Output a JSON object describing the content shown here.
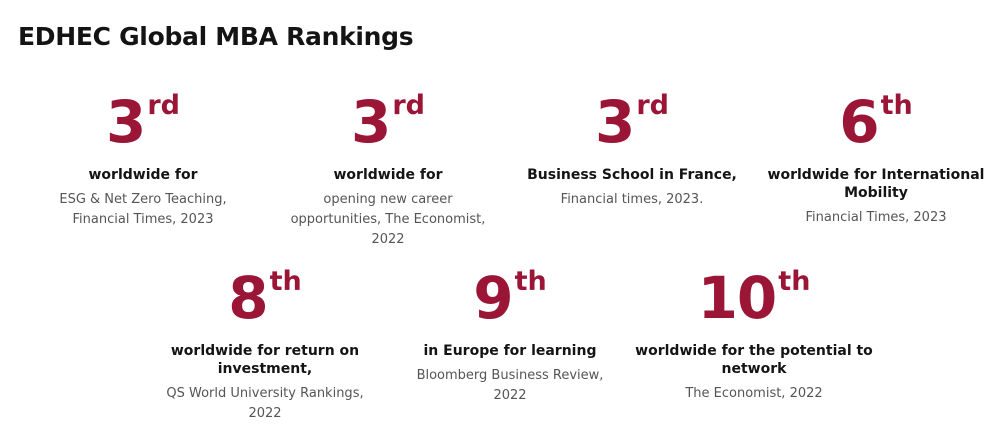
{
  "title": "EDHEC Global MBA Rankings",
  "accent_color": "#9b1536",
  "rankings": [
    {
      "number": "3",
      "suffix": "rd",
      "headline": "worldwide for",
      "source": "ESG & Net Zero Teaching, Financial Times, 2023"
    },
    {
      "number": "3",
      "suffix": "rd",
      "headline": "worldwide for",
      "source": "opening new career opportunities, The Economist, 2022"
    },
    {
      "number": "3",
      "suffix": "rd",
      "headline": "Business School in France,",
      "source": "Financial times, 2023."
    },
    {
      "number": "6",
      "suffix": "th",
      "headline": "worldwide for International Mobility",
      "source": "Financial Times, 2023"
    },
    {
      "number": "8",
      "suffix": "th",
      "headline": "worldwide for return on investment,",
      "source": "QS World University Rankings, 2022"
    },
    {
      "number": "9",
      "suffix": "th",
      "headline": "in Europe for learning",
      "source": "Bloomberg Business Review, 2022"
    },
    {
      "number": "10",
      "suffix": "th",
      "headline": "worldwide for the potential to network",
      "source": "The Economist, 2022"
    }
  ]
}
